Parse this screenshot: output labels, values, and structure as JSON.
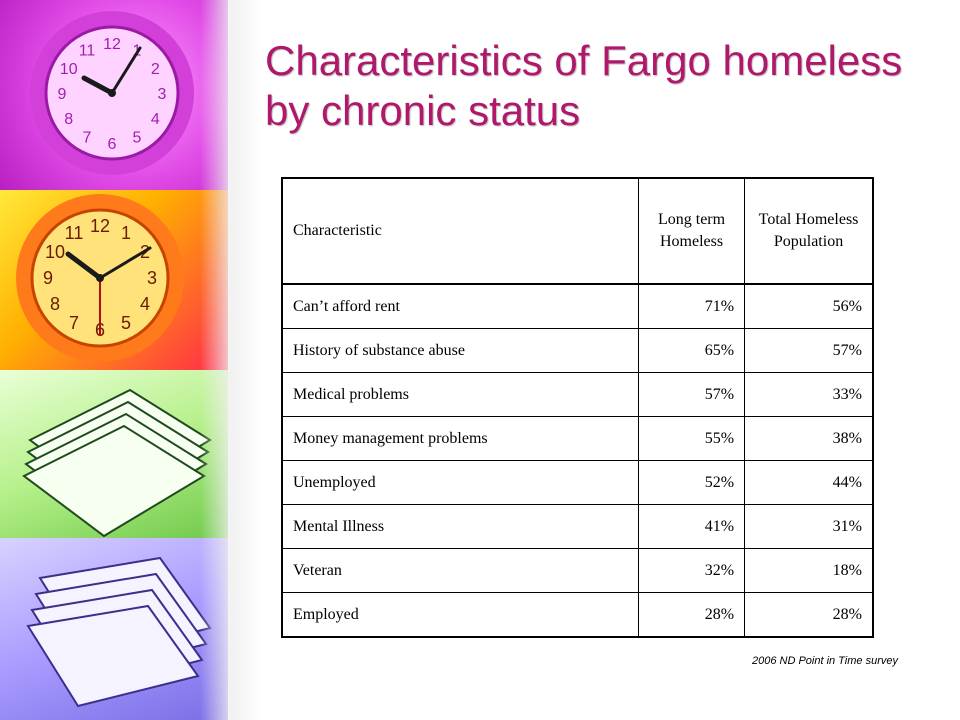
{
  "title": "Characteristics of Fargo homeless by chronic status",
  "table": {
    "headers": [
      "Characteristic",
      "Long term Homeless",
      "Total Homeless Population"
    ],
    "rows": [
      {
        "characteristic": "Can’t afford rent",
        "long_term": "71%",
        "total": "56%"
      },
      {
        "characteristic": "History of substance abuse",
        "long_term": "65%",
        "total": "57%"
      },
      {
        "characteristic": "Medical problems",
        "long_term": "57%",
        "total": "33%"
      },
      {
        "characteristic": "Money management problems",
        "long_term": "55%",
        "total": "38%"
      },
      {
        "characteristic": "Unemployed",
        "long_term": "52%",
        "total": "44%"
      },
      {
        "characteristic": "Mental Illness",
        "long_term": "41%",
        "total": "31%"
      },
      {
        "characteristic": "Veteran",
        "long_term": "32%",
        "total": "18%"
      },
      {
        "characteristic": "Employed",
        "long_term": "28%",
        "total": "28%"
      }
    ]
  },
  "source": "2006 ND Point in Time survey",
  "decor": {
    "clock1_numbers": [
      "12",
      "1",
      "2",
      "3",
      "4",
      "5",
      "6",
      "7",
      "8",
      "9",
      "10",
      "11"
    ],
    "clock2_numbers": [
      "12",
      "1",
      "2",
      "3",
      "4",
      "5",
      "6",
      "7",
      "8",
      "9",
      "10",
      "11"
    ]
  },
  "colors": {
    "title": "#b0186b",
    "panel_magenta": "#e04ae6",
    "panel_yellow": "#ffb000",
    "panel_green": "#b6f08a",
    "panel_violet": "#a99cff"
  }
}
